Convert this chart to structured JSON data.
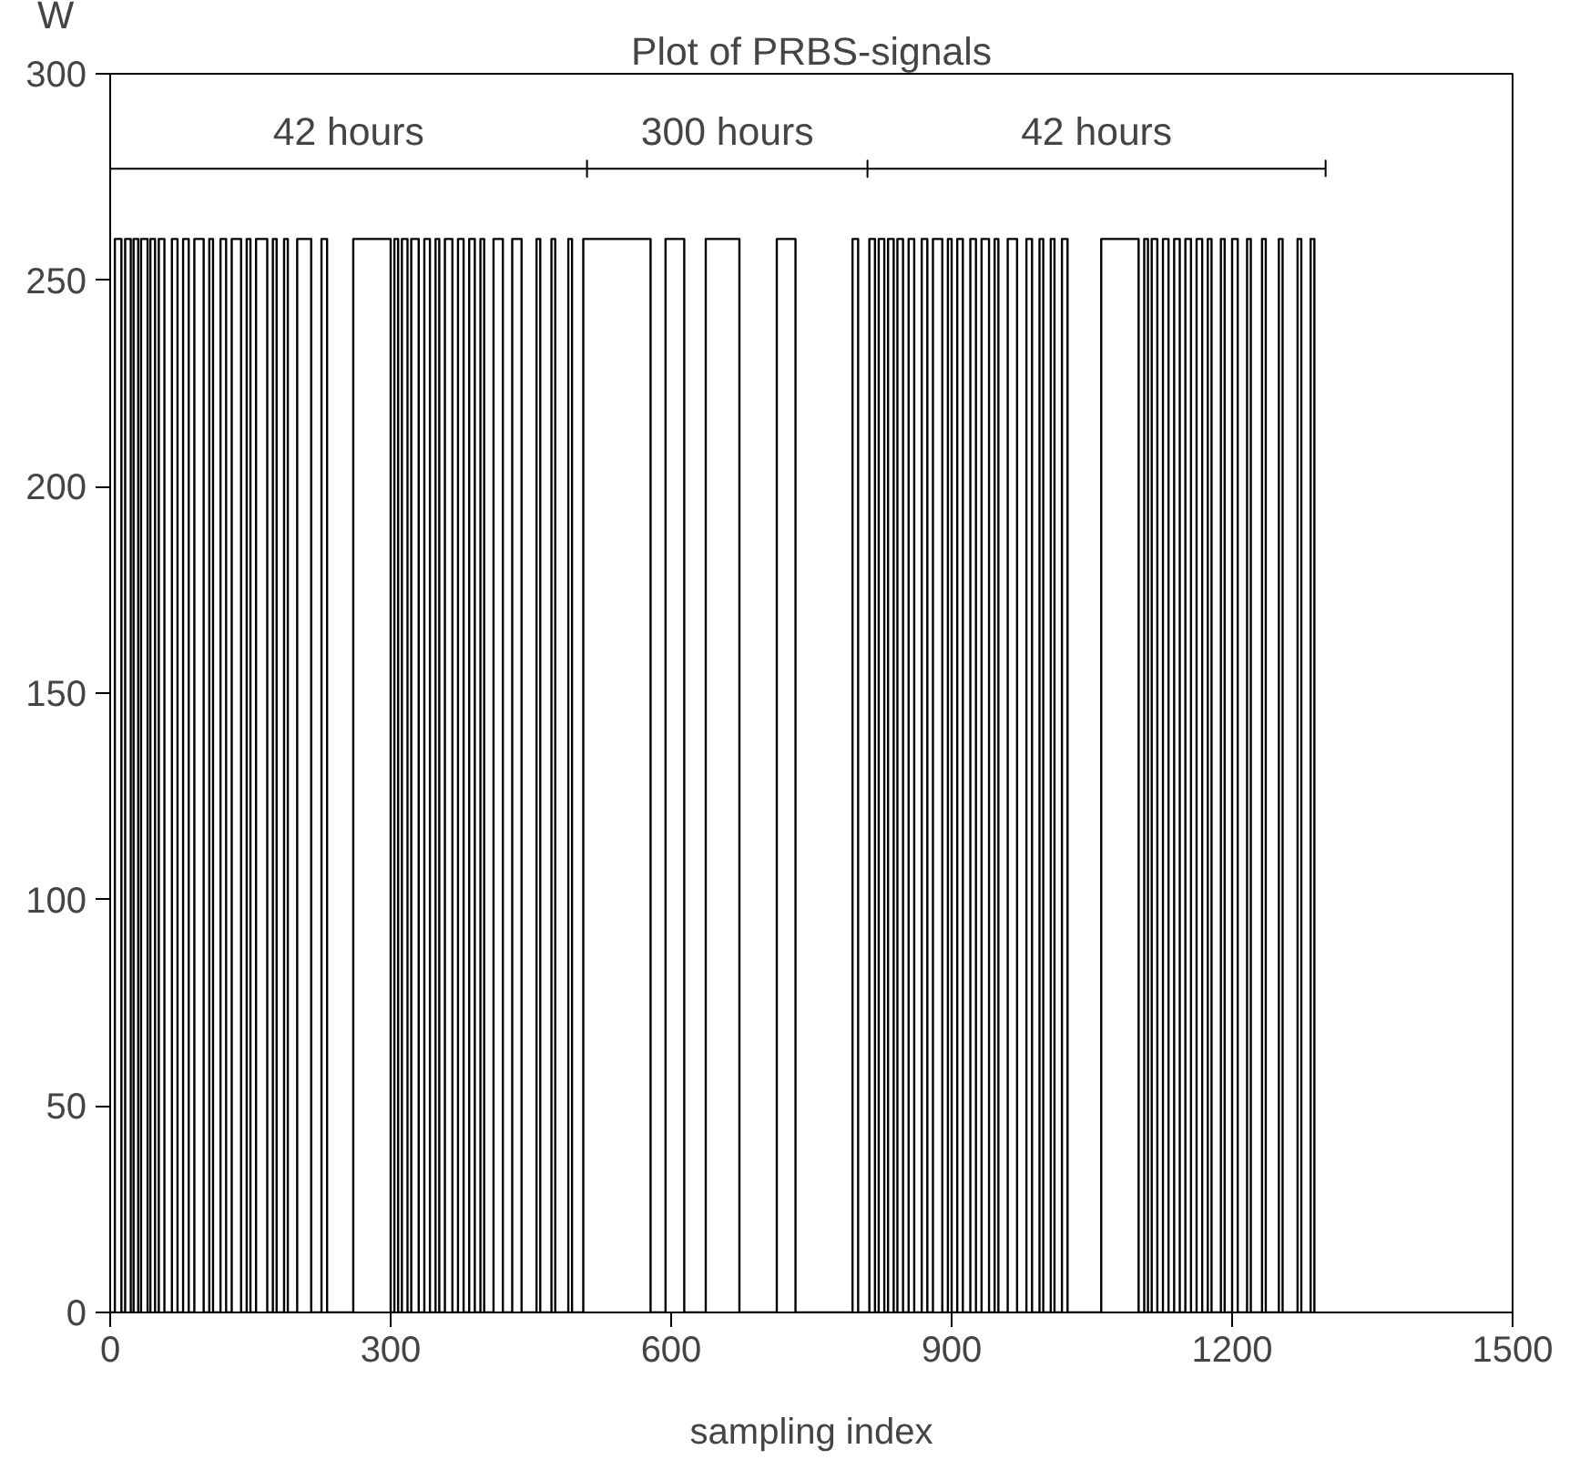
{
  "chart_data": {
    "type": "step",
    "title": "Plot of PRBS-signals",
    "xlabel": "sampling index",
    "ylabel": "W",
    "xlim": [
      0,
      1500
    ],
    "xticks": [
      0,
      300,
      600,
      900,
      1200,
      1500
    ],
    "ylim": [
      0,
      300
    ],
    "yticks": [
      0,
      50,
      100,
      150,
      200,
      250,
      300
    ],
    "grid": false,
    "series": [
      {
        "type": "line",
        "color": "#000000",
        "x": [
          0,
          510,
          510,
          510,
          510,
          810,
          810,
          810,
          810,
          1300,
          1300,
          1300
        ],
        "values": [
          277,
          277,
          279,
          275,
          277,
          277,
          279,
          275,
          277,
          277,
          279,
          275
        ]
      },
      {
        "color": "#000000",
        "x": [
          0,
          5,
          12,
          16,
          22,
          25,
          30,
          33,
          40,
          43,
          48,
          52,
          58,
          66,
          72,
          78,
          84,
          90,
          100,
          106,
          110,
          118,
          124,
          130,
          140,
          146,
          150,
          156,
          168,
          174,
          178,
          186,
          190,
          200,
          215,
          226,
          232,
          260,
          300,
          304,
          308,
          312,
          318,
          322,
          330,
          336,
          342,
          348,
          352,
          358,
          366,
          372,
          378,
          384,
          390,
          396,
          400,
          410,
          420,
          430,
          440,
          456,
          460,
          472,
          476,
          490,
          494,
          506,
          578,
          594,
          614,
          637,
          673,
          713,
          733,
          794,
          800,
          812,
          818,
          822,
          828,
          832,
          838,
          842,
          848,
          854,
          860,
          868,
          874,
          880,
          890,
          896,
          900,
          906,
          912,
          920,
          926,
          932,
          940,
          946,
          950,
          960,
          970,
          980,
          986,
          994,
          998,
          1006,
          1010,
          1018,
          1024,
          1060,
          1100,
          1106,
          1110,
          1114,
          1120,
          1126,
          1132,
          1138,
          1144,
          1150,
          1156,
          1162,
          1168,
          1174,
          1178,
          1188,
          1192,
          1200,
          1206,
          1216,
          1220,
          1232,
          1236,
          1250,
          1254,
          1270,
          1274,
          1284,
          1288
        ],
        "values": [
          0,
          260,
          0,
          260,
          0,
          260,
          0,
          260,
          0,
          260,
          0,
          260,
          0,
          260,
          0,
          260,
          0,
          260,
          0,
          260,
          0,
          260,
          0,
          260,
          0,
          260,
          0,
          260,
          0,
          260,
          0,
          260,
          0,
          260,
          0,
          260,
          0,
          260,
          0,
          260,
          0,
          260,
          0,
          260,
          0,
          260,
          0,
          260,
          0,
          260,
          0,
          260,
          0,
          260,
          0,
          260,
          0,
          260,
          0,
          260,
          0,
          260,
          0,
          260,
          0,
          260,
          0,
          260,
          0,
          260,
          0,
          260,
          0,
          260,
          0,
          260,
          0,
          260,
          0,
          260,
          0,
          260,
          0,
          260,
          0,
          260,
          0,
          260,
          0,
          260,
          0,
          260,
          0,
          260,
          0,
          260,
          0,
          260,
          0,
          260,
          0,
          260,
          0,
          260,
          0,
          260,
          0,
          260,
          0,
          260,
          0,
          260,
          0,
          260,
          0,
          260,
          0,
          260,
          0,
          260,
          0,
          260,
          0,
          260,
          0,
          260,
          0,
          260,
          0,
          260,
          0,
          260,
          0,
          260,
          0,
          260,
          0,
          260,
          0,
          260,
          0
        ]
      }
    ],
    "annotations": [
      {
        "text": "42 hours",
        "x": 255,
        "y": 277
      },
      {
        "text": "300 hours",
        "x": 660,
        "y": 277
      },
      {
        "text": "42 hours",
        "x": 1055,
        "y": 277
      }
    ]
  }
}
